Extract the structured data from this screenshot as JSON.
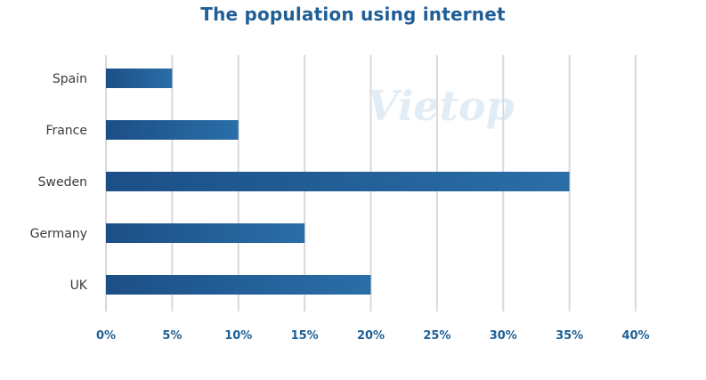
{
  "chart_data": {
    "type": "bar",
    "orientation": "horizontal",
    "title": "The population using internet",
    "categories": [
      "Spain",
      "France",
      "Sweden",
      "Germany",
      "UK"
    ],
    "values": [
      5,
      10,
      35,
      15,
      20
    ],
    "xlim": [
      0,
      40
    ],
    "x_ticks": [
      0,
      5,
      10,
      15,
      20,
      25,
      30,
      35,
      40
    ],
    "x_tick_labels": [
      "0%",
      "5%",
      "10%",
      "15%",
      "20%",
      "25%",
      "30%",
      "35%",
      "40%"
    ],
    "xlabel": "",
    "ylabel": "",
    "grid": "vertical",
    "legend": "none",
    "bar_color": "#2a6ea8",
    "bar_color_dark": "#1c4f86"
  },
  "watermark": {
    "text": "Vietop"
  }
}
